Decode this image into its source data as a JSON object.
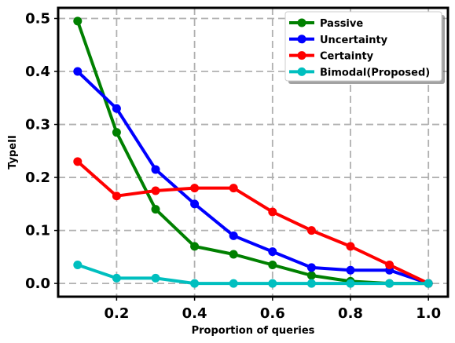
{
  "chart_data": {
    "type": "line",
    "title": "",
    "xlabel": "Proportion of queries",
    "ylabel": "TypeII",
    "xlim": [
      0.05,
      1.05
    ],
    "ylim": [
      -0.025,
      0.52
    ],
    "x_ticks": [
      0.2,
      0.4,
      0.6,
      0.8,
      1.0
    ],
    "x_tick_labels": [
      "0.2",
      "0.4",
      "0.6",
      "0.8",
      "1.0"
    ],
    "y_ticks": [
      0.0,
      0.1,
      0.2,
      0.3,
      0.4,
      0.5
    ],
    "y_tick_labels": [
      "0.0",
      "0.1",
      "0.2",
      "0.3",
      "0.4",
      "0.5"
    ],
    "grid": true,
    "legend_position": "top-right",
    "x": [
      0.1,
      0.2,
      0.3,
      0.4,
      0.5,
      0.6,
      0.7,
      0.8,
      0.9,
      1.0
    ],
    "series": [
      {
        "name": "Passive",
        "color": "#008000",
        "values": [
          0.495,
          0.285,
          0.14,
          0.07,
          0.055,
          0.035,
          0.015,
          0.004,
          0.0,
          0.0
        ]
      },
      {
        "name": "Uncertainty",
        "color": "#0000ff",
        "values": [
          0.4,
          0.33,
          0.215,
          0.15,
          0.09,
          0.06,
          0.03,
          0.025,
          0.025,
          0.0
        ]
      },
      {
        "name": "Certainty",
        "color": "#ff0000",
        "values": [
          0.23,
          0.165,
          0.175,
          0.18,
          0.18,
          0.135,
          0.1,
          0.07,
          0.035,
          0.0
        ]
      },
      {
        "name": "Bimodal(Proposed)",
        "color": "#00bfbf",
        "values": [
          0.035,
          0.01,
          0.01,
          0.0,
          0.0,
          0.0,
          0.0,
          0.0,
          0.0,
          0.0
        ]
      }
    ]
  }
}
